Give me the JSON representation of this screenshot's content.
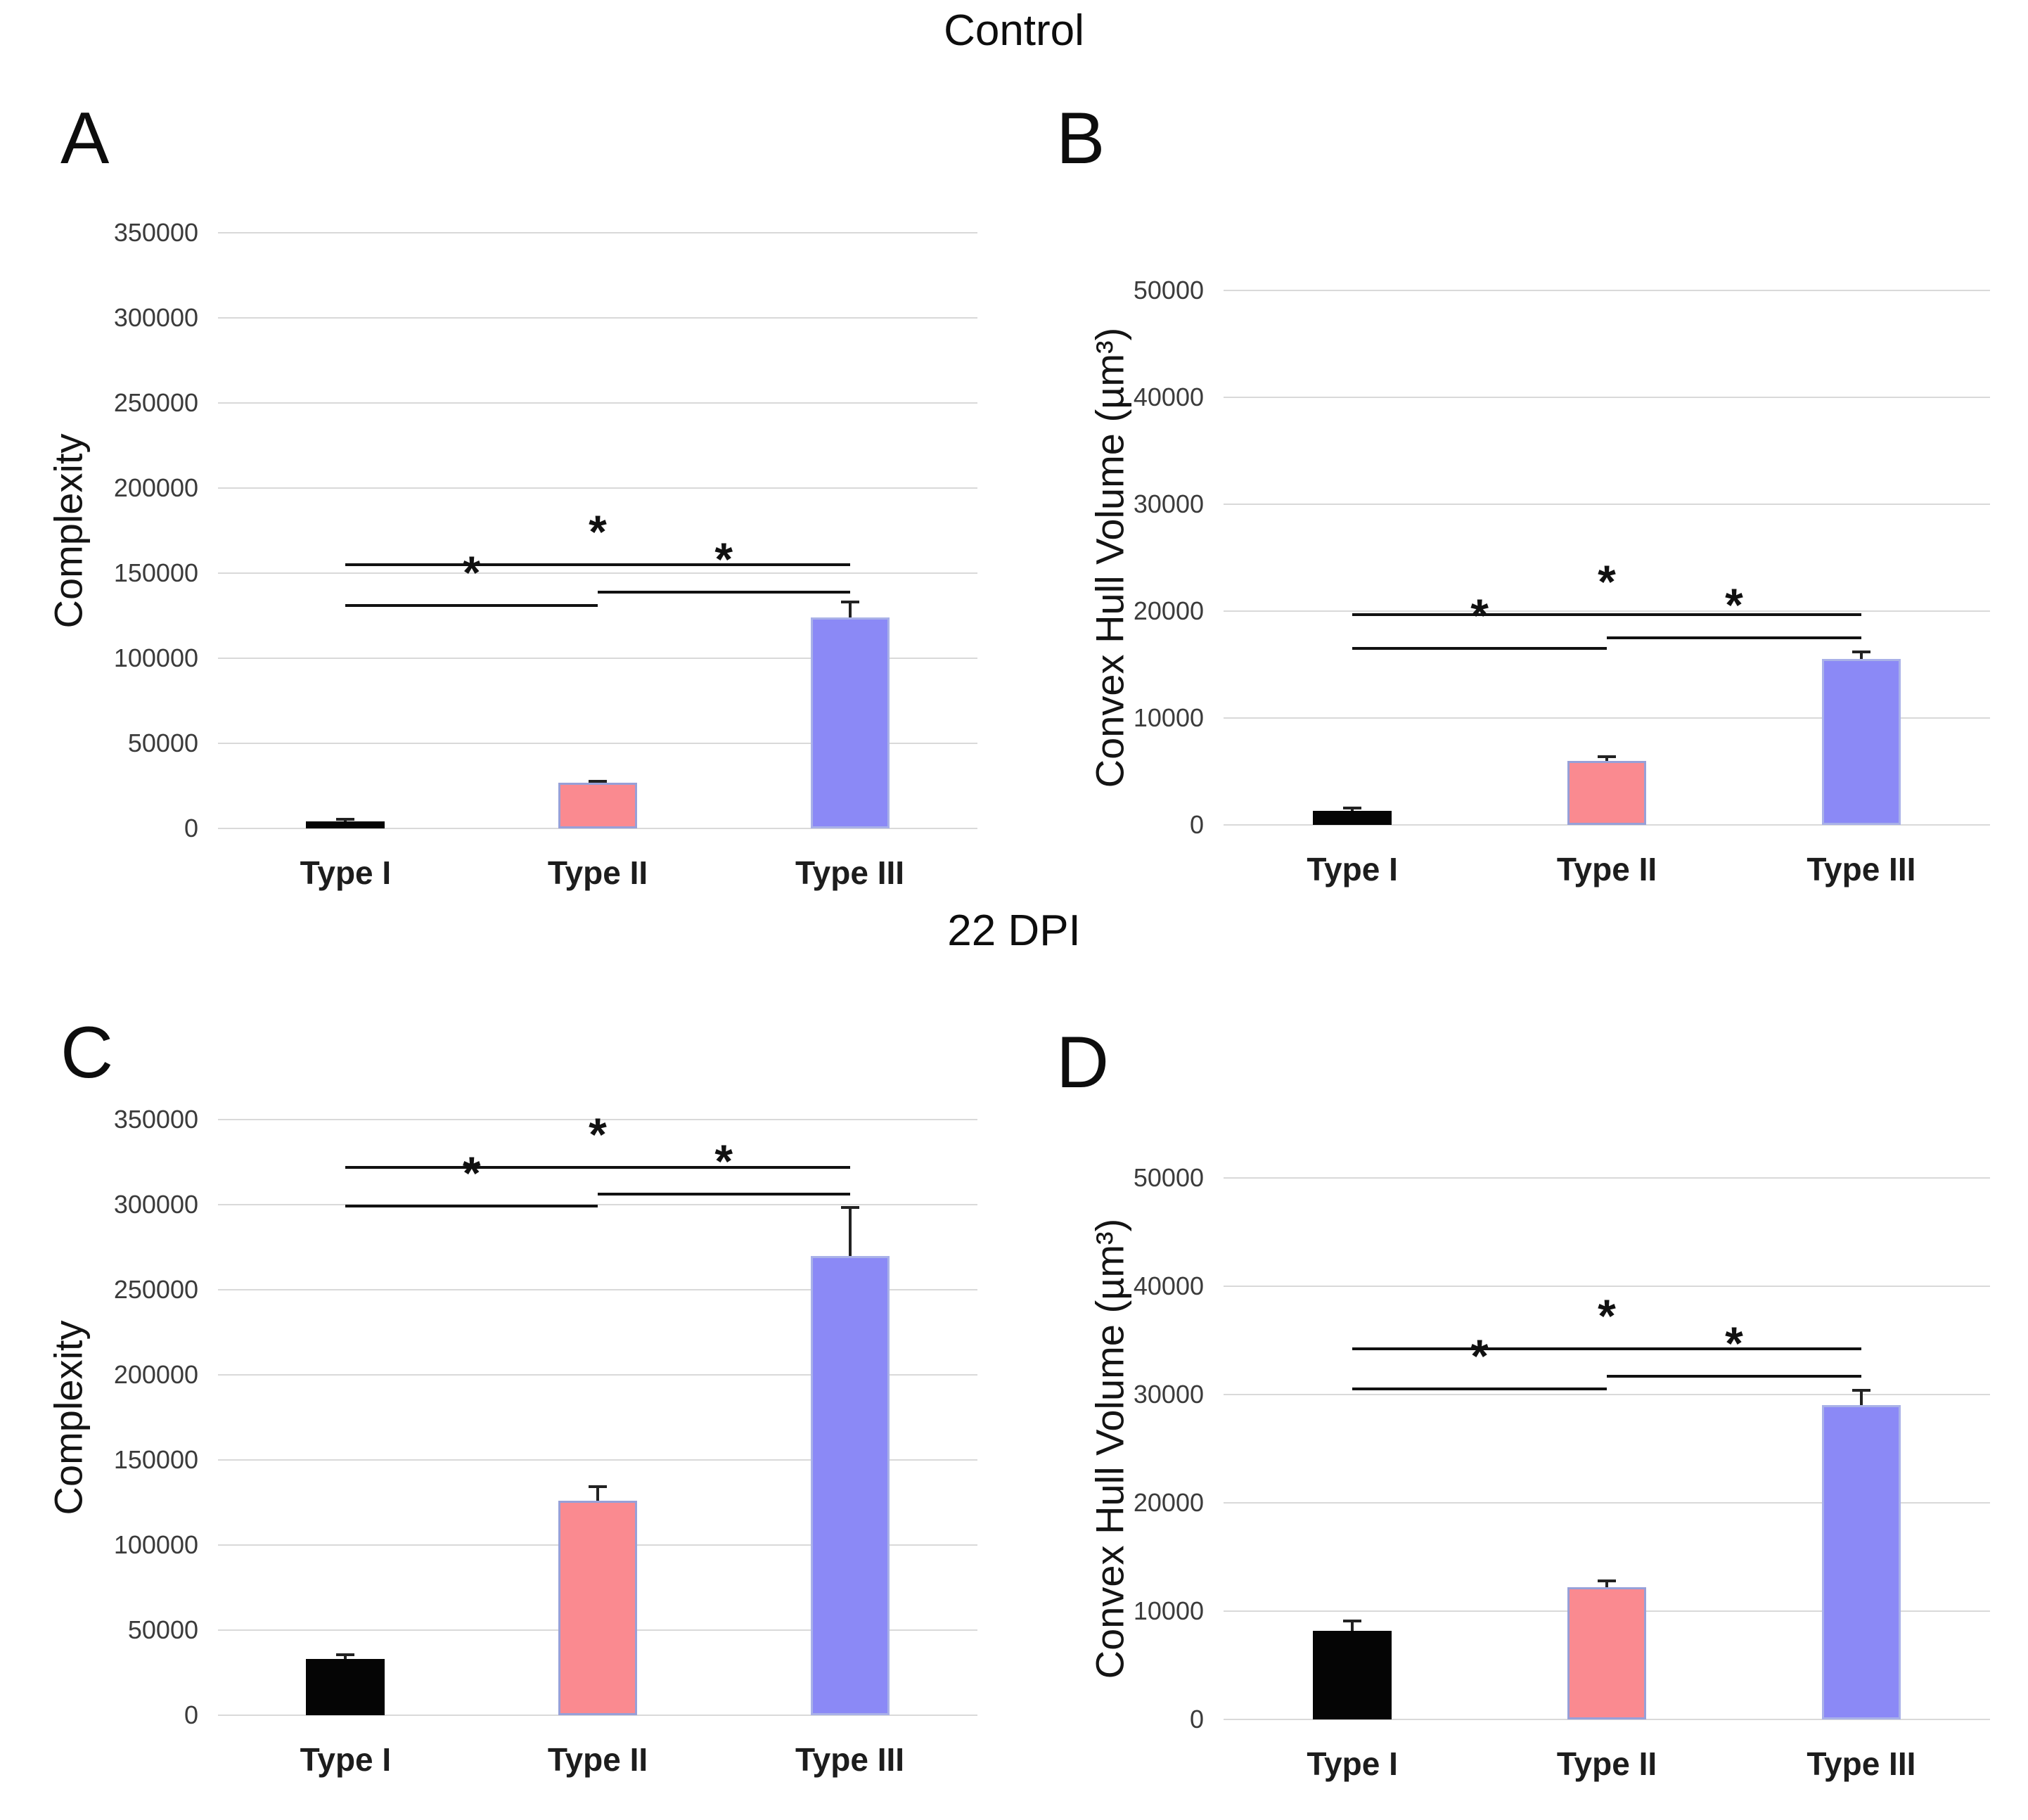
{
  "group_titles": [
    "Control",
    "22 DPI"
  ],
  "chart_data": [
    {
      "type": "bar",
      "panel": "A",
      "group": "Control",
      "ylabel": "Complexity",
      "xlabel": "",
      "ylim": [
        0,
        350000
      ],
      "ytick_step": 50000,
      "grid": true,
      "legend": false,
      "categories": [
        "Type I",
        "Type II",
        "Type III"
      ],
      "values": [
        4000,
        27000,
        124000
      ],
      "errors_plus": [
        2000,
        1500,
        10000
      ],
      "bar_colors": [
        "#050505",
        "#fa8a90",
        "#8b89f6"
      ],
      "bar_border_colors": [
        null,
        "#97a0d8",
        "#a9b1e8"
      ],
      "significance_brackets": [
        {
          "pair": [
            "Type I",
            "Type II"
          ],
          "y": 131000,
          "label": "*"
        },
        {
          "pair": [
            "Type II",
            "Type III"
          ],
          "y": 139000,
          "label": "*"
        },
        {
          "pair": [
            "Type I",
            "Type III"
          ],
          "y": 155000,
          "label": "*"
        }
      ]
    },
    {
      "type": "bar",
      "panel": "B",
      "group": "Control",
      "ylabel": "Convex Hull Volume (µm³)",
      "xlabel": "",
      "ylim": [
        0,
        50000
      ],
      "ytick_step": 10000,
      "grid": true,
      "legend": false,
      "categories": [
        "Type I",
        "Type II",
        "Type III"
      ],
      "values": [
        1300,
        6000,
        15500
      ],
      "errors_plus": [
        400,
        500,
        800
      ],
      "bar_colors": [
        "#050505",
        "#fa8a90",
        "#8b89f6"
      ],
      "bar_border_colors": [
        null,
        "#97a0d8",
        "#a9b1e8"
      ],
      "significance_brackets": [
        {
          "pair": [
            "Type I",
            "Type II"
          ],
          "y": 16500,
          "label": "*"
        },
        {
          "pair": [
            "Type II",
            "Type III"
          ],
          "y": 17500,
          "label": "*"
        },
        {
          "pair": [
            "Type I",
            "Type III"
          ],
          "y": 19700,
          "label": "*"
        }
      ]
    },
    {
      "type": "bar",
      "panel": "C",
      "group": "22 DPI",
      "ylabel": "Complexity",
      "xlabel": "",
      "ylim": [
        0,
        350000
      ],
      "ytick_step": 50000,
      "grid": true,
      "legend": false,
      "categories": [
        "Type I",
        "Type II",
        "Type III"
      ],
      "values": [
        33000,
        126000,
        270000
      ],
      "errors_plus": [
        3500,
        9000,
        29000
      ],
      "bar_colors": [
        "#050505",
        "#fa8a90",
        "#8b89f6"
      ],
      "bar_border_colors": [
        null,
        "#97a0d8",
        "#a9b1e8"
      ],
      "significance_brackets": [
        {
          "pair": [
            "Type I",
            "Type II"
          ],
          "y": 299000,
          "label": "*"
        },
        {
          "pair": [
            "Type II",
            "Type III"
          ],
          "y": 306000,
          "label": "*"
        },
        {
          "pair": [
            "Type I",
            "Type III"
          ],
          "y": 322000,
          "label": "*"
        }
      ]
    },
    {
      "type": "bar",
      "panel": "D",
      "group": "22 DPI",
      "ylabel": "Convex Hull Volume (µm³)",
      "xlabel": "",
      "ylim": [
        0,
        50000
      ],
      "ytick_step": 10000,
      "grid": true,
      "legend": false,
      "categories": [
        "Type I",
        "Type II",
        "Type III"
      ],
      "values": [
        8200,
        12200,
        29000
      ],
      "errors_plus": [
        1000,
        700,
        1500
      ],
      "bar_colors": [
        "#050505",
        "#fa8a90",
        "#8b89f6"
      ],
      "bar_border_colors": [
        null,
        "#97a0d8",
        "#a9b1e8"
      ],
      "significance_brackets": [
        {
          "pair": [
            "Type I",
            "Type II"
          ],
          "y": 30500,
          "label": "*"
        },
        {
          "pair": [
            "Type II",
            "Type III"
          ],
          "y": 31700,
          "label": "*"
        },
        {
          "pair": [
            "Type I",
            "Type III"
          ],
          "y": 34200,
          "label": "*"
        }
      ]
    }
  ]
}
